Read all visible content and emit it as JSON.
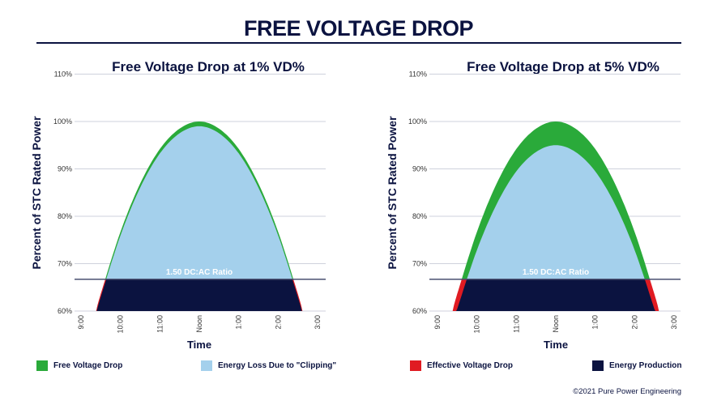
{
  "title": "FREE VOLTAGE DROP",
  "colors": {
    "free_voltage_drop": "#2aaa3a",
    "clipping": "#a4d0ec",
    "effective_voltage_drop": "#e01b22",
    "energy_production": "#0b1340",
    "grid": "#cfd2dc",
    "clip_line": "#4a5070"
  },
  "legend": [
    {
      "label": "Free Voltage Drop",
      "color": "#2aaa3a"
    },
    {
      "label": "Energy Loss Due to \"Clipping\"",
      "color": "#a4d0ec"
    },
    {
      "label": "Effective Voltage Drop",
      "color": "#e01b22"
    },
    {
      "label": "Energy Production",
      "color": "#0b1340"
    }
  ],
  "copyright": "©2021 Pure Power Engineering",
  "chart_data": [
    {
      "type": "area",
      "title": "Free Voltage Drop at 1% VD%",
      "xlabel": "Time",
      "ylabel": "Percent of STC Rated Power",
      "x_ticks": [
        "9:00",
        "10:00",
        "11:00",
        "Noon",
        "1:00",
        "2:00",
        "3:00"
      ],
      "xlim": [
        "09:00",
        "15:00"
      ],
      "y_ticks": [
        "60%",
        "70%",
        "80%",
        "90%",
        "100%",
        "110%"
      ],
      "ylim": [
        60,
        110
      ],
      "grid": true,
      "voltage_drop_percent": 1,
      "clipping_level": 66.7,
      "annotation": "1.50 DC:AC Ratio",
      "array_output": {
        "x": [
          "09:23",
          "09:30",
          "10:00",
          "10:30",
          "11:00",
          "11:30",
          "12:00",
          "12:30",
          "13:00",
          "13:30",
          "14:00",
          "14:30",
          "14:37"
        ],
        "y": [
          60,
          63.6,
          76.7,
          86.9,
          94.2,
          98.5,
          100,
          98.5,
          94.2,
          86.9,
          76.7,
          63.6,
          60
        ]
      }
    },
    {
      "type": "area",
      "title": "Free Voltage Drop at 5% VD%",
      "xlabel": "Time",
      "ylabel": "Percent of STC Rated Power",
      "x_ticks": [
        "9:00",
        "10:00",
        "11:00",
        "Noon",
        "1:00",
        "2:00",
        "3:00"
      ],
      "xlim": [
        "09:00",
        "15:00"
      ],
      "y_ticks": [
        "60%",
        "70%",
        "80%",
        "90%",
        "100%",
        "110%"
      ],
      "ylim": [
        60,
        110
      ],
      "grid": true,
      "voltage_drop_percent": 5,
      "clipping_level": 66.7,
      "annotation": "1.50 DC:AC Ratio",
      "array_output": {
        "x": [
          "09:23",
          "09:30",
          "10:00",
          "10:30",
          "11:00",
          "11:30",
          "12:00",
          "12:30",
          "13:00",
          "13:30",
          "14:00",
          "14:30",
          "14:37"
        ],
        "y": [
          60,
          63.6,
          76.7,
          86.9,
          94.2,
          98.5,
          100,
          98.5,
          94.2,
          86.9,
          76.7,
          63.6,
          60
        ]
      }
    }
  ]
}
